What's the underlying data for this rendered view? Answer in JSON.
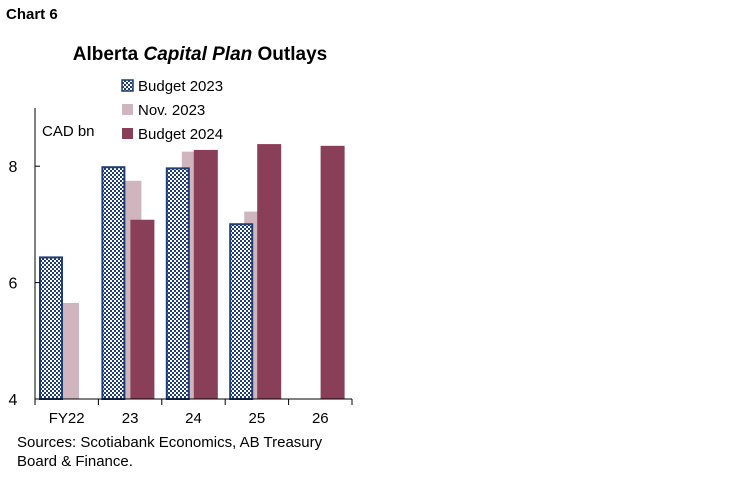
{
  "header": {
    "chart_label": "Chart 6",
    "title_part1": "Alberta ",
    "title_italic": "Capital Plan",
    "title_part2": " Outlays"
  },
  "source": "Sources: Scotiabank Economics, AB Treasury Board & Finance.",
  "colors": {
    "budget_2023_fill": "#ffffff",
    "budget_2023_pattern": "#1f3f73",
    "nov_2023": "#d1b5be",
    "budget_2024": "#8a3f58",
    "axis": "#000000"
  },
  "chart_data": {
    "type": "bar",
    "title": "Alberta Capital Plan Outlays",
    "ylabel": "CAD bn",
    "xlabel": "",
    "categories": [
      "FY22",
      "23",
      "24",
      "25",
      "26"
    ],
    "ylim": [
      4,
      9
    ],
    "yticks": [
      4,
      6,
      8
    ],
    "grid": false,
    "legend_placement": "top-center",
    "series": [
      {
        "name": "Budget 2023",
        "values": [
          6.45,
          8.0,
          7.98,
          7.02,
          null
        ],
        "style": "pattern"
      },
      {
        "name": "Nov. 2023",
        "values": [
          5.65,
          7.75,
          8.25,
          7.22,
          null
        ],
        "style": "solid"
      },
      {
        "name": "Budget 2024",
        "values": [
          null,
          7.08,
          8.28,
          8.38,
          8.35
        ],
        "style": "solid"
      }
    ]
  }
}
